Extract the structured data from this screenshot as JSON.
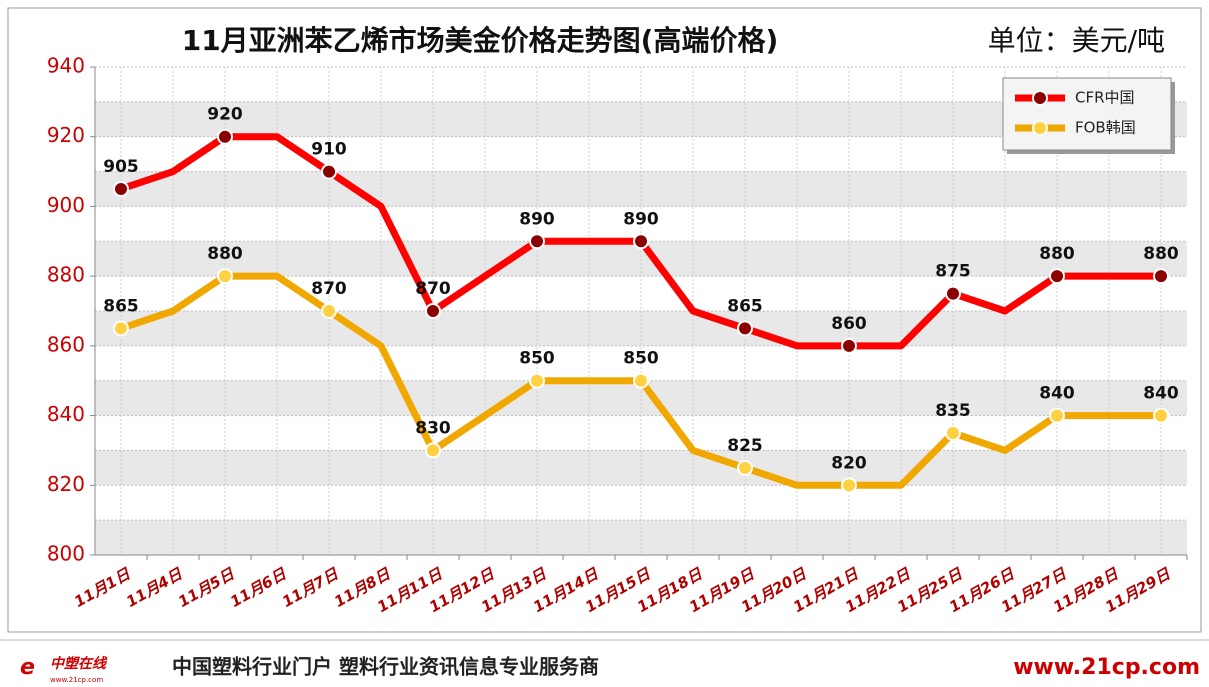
{
  "chart_data": {
    "type": "line",
    "title": "11月亚洲苯乙烯市场美金价格走势图(高端价格)",
    "unit": "单位：美元/吨",
    "categories": [
      "11月1日",
      "11月4日",
      "11月5日",
      "11月6日",
      "11月7日",
      "11月8日",
      "11月11日",
      "11月12日",
      "11月13日",
      "11月14日",
      "11月15日",
      "11月18日",
      "11月19日",
      "11月20日",
      "11月21日",
      "11月22日",
      "11月25日",
      "11月26日",
      "11月27日",
      "11月28日",
      "11月29日"
    ],
    "series": [
      {
        "name": "CFR中国",
        "color": "#ff0000",
        "marker_color": "#8b0000",
        "values": [
          905,
          910,
          920,
          920,
          910,
          900,
          870,
          880,
          890,
          890,
          890,
          870,
          865,
          860,
          860,
          860,
          875,
          870,
          880,
          880,
          880
        ]
      },
      {
        "name": "FOB韩国",
        "color": "#f0a800",
        "marker_color": "#ffd040",
        "values": [
          865,
          870,
          880,
          880,
          870,
          860,
          830,
          840,
          850,
          850,
          850,
          830,
          825,
          820,
          820,
          820,
          835,
          830,
          840,
          840,
          840
        ]
      }
    ],
    "ylim": [
      800,
      940
    ],
    "yticks": [
      800,
      820,
      840,
      860,
      880,
      900,
      920,
      940
    ],
    "grid": true,
    "legend": "top-right",
    "footer": {
      "logo": "中塑在线",
      "logo_url": "www.21cp.com",
      "slogan": "中国塑料行业门户 塑料行业资讯信息专业服务商",
      "url": "www.21cp.com"
    }
  }
}
